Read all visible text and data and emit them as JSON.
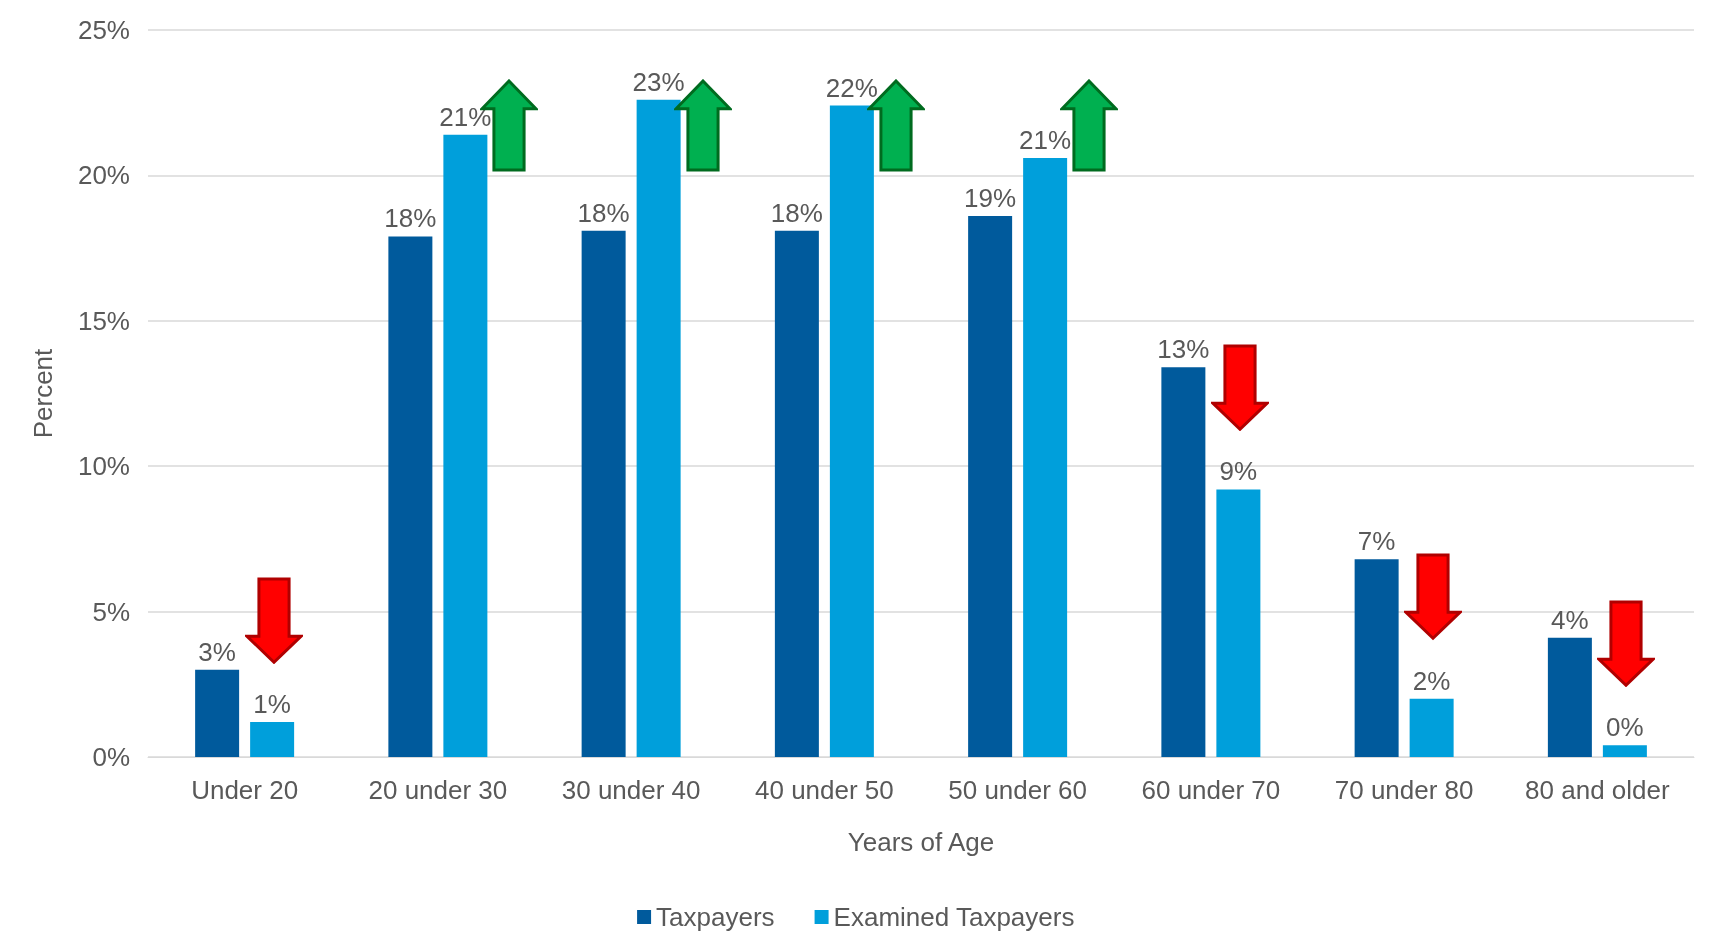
{
  "chart_data": {
    "type": "bar",
    "xlabel": "Years of Age",
    "ylabel": "Percent",
    "categories": [
      "Under 20",
      "20 under 30",
      "30 under 40",
      "40 under 50",
      "50 under 60",
      "60 under 70",
      "70 under 80",
      "80 and older"
    ],
    "series": [
      {
        "name": "Taxpayers",
        "color": "#005a9c",
        "values": [
          3.0,
          17.9,
          18.1,
          18.1,
          18.6,
          13.4,
          6.8,
          4.1
        ],
        "value_labels": [
          "3%",
          "18%",
          "18%",
          "18%",
          "19%",
          "13%",
          "7%",
          "4%"
        ]
      },
      {
        "name": "Examined Taxpayers",
        "color": "#009fdb",
        "values": [
          1.2,
          21.4,
          22.6,
          22.4,
          20.6,
          9.2,
          2.0,
          0.4
        ],
        "value_labels": [
          "1%",
          "21%",
          "23%",
          "22%",
          "21%",
          "9%",
          "2%",
          "0%"
        ]
      }
    ],
    "ylim": [
      0,
      25
    ],
    "yticks": [
      {
        "value": 0,
        "label": "0%"
      },
      {
        "value": 5,
        "label": "5%"
      },
      {
        "value": 10,
        "label": "10%"
      },
      {
        "value": 15,
        "label": "15%"
      },
      {
        "value": 20,
        "label": "20%"
      },
      {
        "value": 25,
        "label": "25%"
      }
    ],
    "grid": "y",
    "legend": "bottom"
  }
}
